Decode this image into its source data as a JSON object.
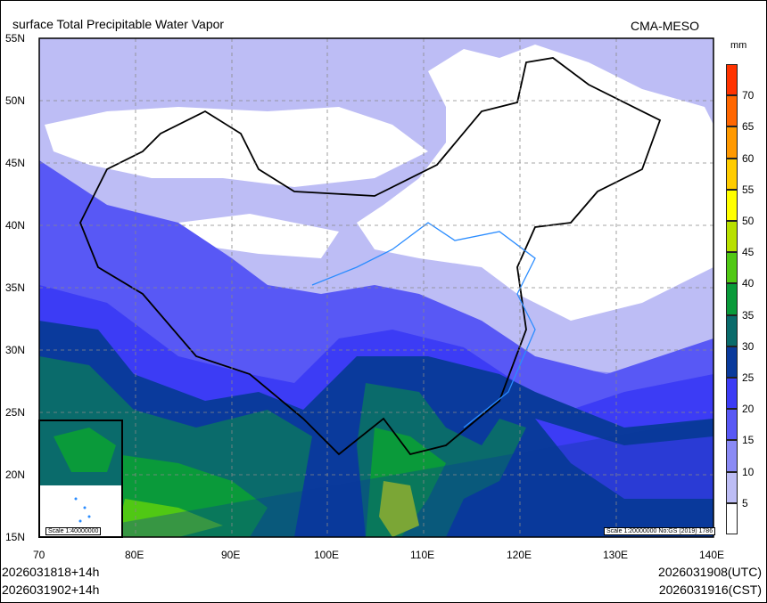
{
  "title": "surface Total Precipitable Water Vapor",
  "model": "CMA-MESO",
  "colorbar": {
    "unit": "mm",
    "labels": [
      "70",
      "65",
      "60",
      "55",
      "50",
      "45",
      "40",
      "35",
      "30",
      "25",
      "20",
      "15",
      "10",
      "5"
    ],
    "colors": [
      "#ffffff",
      "#bdbdf5",
      "#8a8af5",
      "#5858f5",
      "#3c3cf5",
      "#0a3a9c",
      "#0a6b6b",
      "#0a9a3a",
      "#50c814",
      "#b8e000",
      "#ffff00",
      "#ffcc00",
      "#ff9900",
      "#ff6600",
      "#ff3300"
    ]
  },
  "lat_labels": [
    "55N",
    "50N",
    "45N",
    "40N",
    "35N",
    "30N",
    "25N",
    "20N",
    "15N"
  ],
  "lon_labels": [
    "70",
    "80E",
    "90E",
    "100E",
    "110E",
    "120E",
    "130E",
    "140E"
  ],
  "inset_scale": "Scale 1:40000000",
  "main_scale": "Scale 1:20000000 No:GS (2019) 1786",
  "footer": {
    "init_left": "2026031818+14h",
    "valid_left": "2026031902+14h",
    "utc": "2026031908(UTC)",
    "cst": "2026031916(CST)"
  }
}
